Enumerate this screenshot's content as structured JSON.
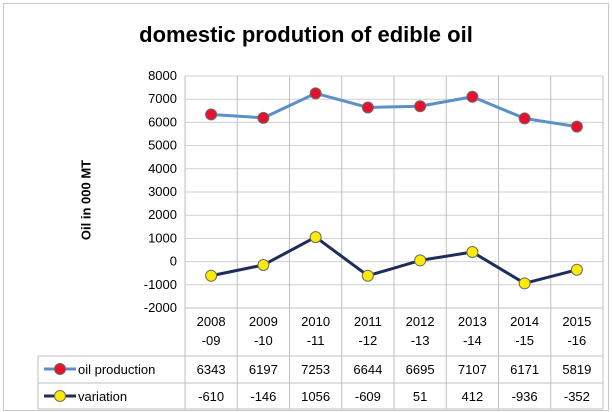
{
  "chart_data": {
    "type": "line",
    "title": "domestic prodution of edible oil",
    "ylabel": "Oil in 000 MT",
    "xlabel": "",
    "ylim": [
      -2000,
      8000
    ],
    "yticks": [
      8000,
      7000,
      6000,
      5000,
      4000,
      3000,
      2000,
      1000,
      0,
      -1000,
      -2000
    ],
    "categories": [
      "2008 -09",
      "2009 -10",
      "2010 -11",
      "2011 -12",
      "2012 -13",
      "2013 -14",
      "2014 -15",
      "2015 -16"
    ],
    "category_lines": [
      [
        "2008",
        "-09"
      ],
      [
        "2009",
        "-10"
      ],
      [
        "2010",
        "-11"
      ],
      [
        "2011",
        "-12"
      ],
      [
        "2012",
        "-13"
      ],
      [
        "2013",
        "-14"
      ],
      [
        "2014",
        "-15"
      ],
      [
        "2015",
        "-16"
      ]
    ],
    "series": [
      {
        "name": "oil production",
        "values": [
          6343,
          6197,
          7253,
          6644,
          6695,
          7107,
          6171,
          5819
        ],
        "line_color": "#5b8fc9",
        "marker_color": "#e8112d"
      },
      {
        "name": "variation",
        "values": [
          -610,
          -146,
          1056,
          -609,
          51,
          412,
          -936,
          -352
        ],
        "line_color": "#1f2d5c",
        "marker_color": "#ffea00"
      }
    ],
    "grid": true,
    "legend": "data-table"
  }
}
